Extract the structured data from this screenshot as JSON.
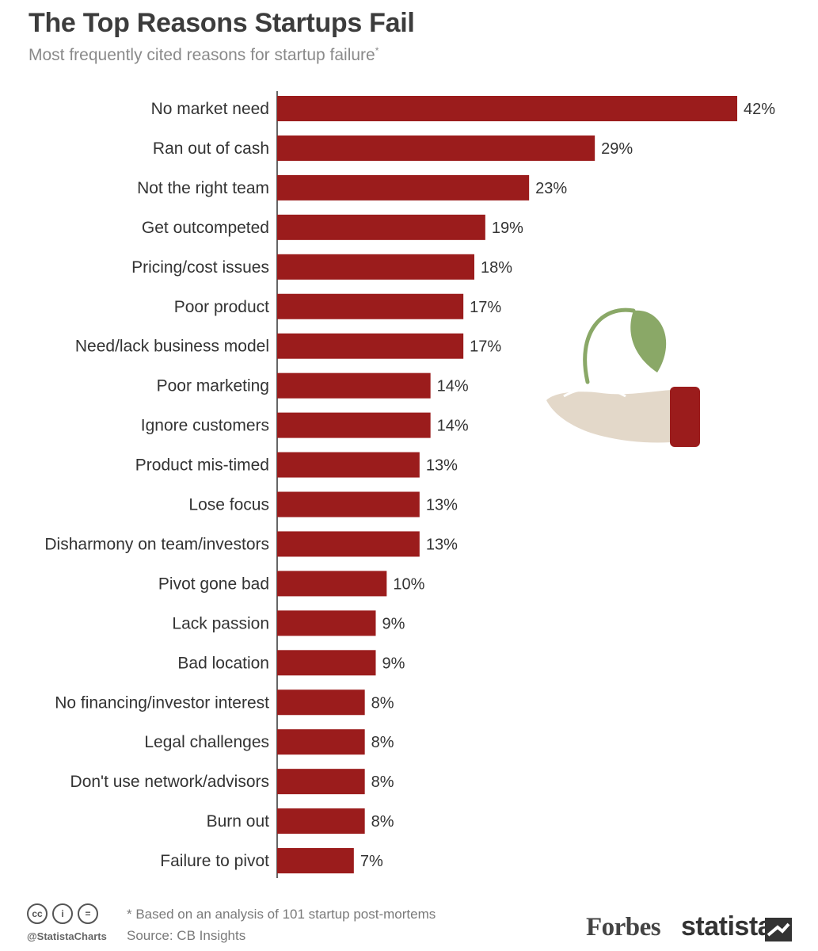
{
  "header": {
    "title": "The Top Reasons Startups Fail",
    "subtitle": "Most frequently cited reasons for startup failure",
    "subtitle_mark": "*"
  },
  "colors": {
    "bar": "#9b1c1c",
    "leaf": "#8aa867",
    "hand": "#e3d8c9",
    "cuff": "#9b1c1c"
  },
  "chart_data": {
    "type": "bar",
    "orientation": "horizontal",
    "title": "The Top Reasons Startups Fail",
    "subtitle": "Most frequently cited reasons for startup failure*",
    "unit": "%",
    "categories": [
      "No market need",
      "Ran out of cash",
      "Not the right team",
      "Get outcompeted",
      "Pricing/cost issues",
      "Poor product",
      "Need/lack business model",
      "Poor marketing",
      "Ignore customers",
      "Product mis-timed",
      "Lose focus",
      "Disharmony on team/investors",
      "Pivot gone bad",
      "Lack passion",
      "Bad location",
      "No financing/investor interest",
      "Legal challenges",
      "Don't use network/advisors",
      "Burn out",
      "Failure to pivot"
    ],
    "values": [
      42,
      29,
      23,
      19,
      18,
      17,
      17,
      14,
      14,
      13,
      13,
      13,
      10,
      9,
      9,
      8,
      8,
      8,
      8,
      7
    ],
    "value_labels": [
      "42%",
      "29%",
      "23%",
      "19%",
      "18%",
      "17%",
      "17%",
      "14%",
      "14%",
      "13%",
      "13%",
      "13%",
      "10%",
      "9%",
      "9%",
      "8%",
      "8%",
      "8%",
      "8%",
      "7%"
    ],
    "xlim": [
      0,
      42
    ],
    "grid": false,
    "legend": "none"
  },
  "footer": {
    "note": "* Based on an analysis of 101 startup post-mortems",
    "source": "Source: CB Insights",
    "handle": "@StatistaCharts",
    "cc_icons": [
      "cc-icon",
      "attribution-icon",
      "no-derivatives-icon"
    ],
    "cc_glyphs": [
      "cc",
      "i",
      "="
    ],
    "brand_forbes": "Forbes",
    "brand_statista": "statista"
  }
}
